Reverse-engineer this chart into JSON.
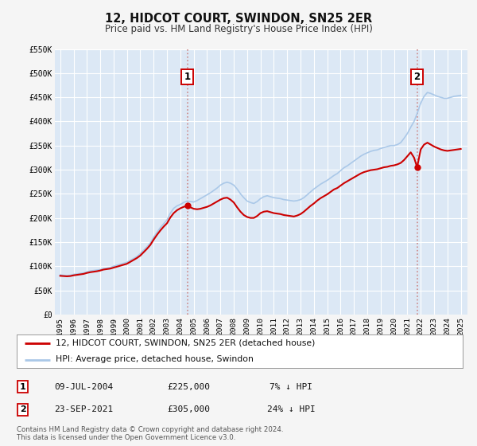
{
  "title": "12, HIDCOT COURT, SWINDON, SN25 2ER",
  "subtitle": "Price paid vs. HM Land Registry's House Price Index (HPI)",
  "bg_color": "#f5f5f5",
  "plot_bg_color": "#dce8f5",
  "grid_color": "#ffffff",
  "hpi_color": "#aac8e8",
  "price_color": "#cc0000",
  "vline1_color": "#c8b0b0",
  "vline2_color": "#cc6666",
  "ylim": [
    0,
    550000
  ],
  "yticks": [
    0,
    50000,
    100000,
    150000,
    200000,
    250000,
    300000,
    350000,
    400000,
    450000,
    500000,
    550000
  ],
  "ytick_labels": [
    "£0",
    "£50K",
    "£100K",
    "£150K",
    "£200K",
    "£250K",
    "£300K",
    "£350K",
    "£400K",
    "£450K",
    "£500K",
    "£550K"
  ],
  "xlim_start": 1994.6,
  "xlim_end": 2025.5,
  "transaction1": {
    "date_num": 2004.52,
    "price": 225000,
    "label": "1",
    "date_str": "09-JUL-2004",
    "price_str": "£225,000",
    "pct_str": "7% ↓ HPI"
  },
  "transaction2": {
    "date_num": 2021.73,
    "price": 305000,
    "label": "2",
    "date_str": "23-SEP-2021",
    "price_str": "£305,000",
    "pct_str": "24% ↓ HPI"
  },
  "legend_label1": "12, HIDCOT COURT, SWINDON, SN25 2ER (detached house)",
  "legend_label2": "HPI: Average price, detached house, Swindon",
  "footer1": "Contains HM Land Registry data © Crown copyright and database right 2024.",
  "footer2": "This data is licensed under the Open Government Licence v3.0.",
  "hpi_data": [
    [
      1995.0,
      82000
    ],
    [
      1995.25,
      81000
    ],
    [
      1995.5,
      80500
    ],
    [
      1995.75,
      81000
    ],
    [
      1996.0,
      83000
    ],
    [
      1996.25,
      84000
    ],
    [
      1996.5,
      85000
    ],
    [
      1996.75,
      86000
    ],
    [
      1997.0,
      88000
    ],
    [
      1997.25,
      90000
    ],
    [
      1997.5,
      91000
    ],
    [
      1997.75,
      92000
    ],
    [
      1998.0,
      93000
    ],
    [
      1998.25,
      95000
    ],
    [
      1998.5,
      96000
    ],
    [
      1998.75,
      97000
    ],
    [
      1999.0,
      100000
    ],
    [
      1999.25,
      102000
    ],
    [
      1999.5,
      104000
    ],
    [
      1999.75,
      106000
    ],
    [
      2000.0,
      108000
    ],
    [
      2000.25,
      112000
    ],
    [
      2000.5,
      116000
    ],
    [
      2000.75,
      120000
    ],
    [
      2001.0,
      126000
    ],
    [
      2001.25,
      133000
    ],
    [
      2001.5,
      140000
    ],
    [
      2001.75,
      148000
    ],
    [
      2002.0,
      160000
    ],
    [
      2002.25,
      170000
    ],
    [
      2002.5,
      180000
    ],
    [
      2002.75,
      188000
    ],
    [
      2003.0,
      196000
    ],
    [
      2003.25,
      210000
    ],
    [
      2003.5,
      220000
    ],
    [
      2003.75,
      225000
    ],
    [
      2004.0,
      228000
    ],
    [
      2004.25,
      232000
    ],
    [
      2004.5,
      235000
    ],
    [
      2004.75,
      234000
    ],
    [
      2005.0,
      233000
    ],
    [
      2005.25,
      236000
    ],
    [
      2005.5,
      240000
    ],
    [
      2005.75,
      244000
    ],
    [
      2006.0,
      248000
    ],
    [
      2006.25,
      252000
    ],
    [
      2006.5,
      257000
    ],
    [
      2006.75,
      262000
    ],
    [
      2007.0,
      268000
    ],
    [
      2007.25,
      272000
    ],
    [
      2007.5,
      274000
    ],
    [
      2007.75,
      272000
    ],
    [
      2008.0,
      268000
    ],
    [
      2008.25,
      260000
    ],
    [
      2008.5,
      250000
    ],
    [
      2008.75,
      242000
    ],
    [
      2009.0,
      235000
    ],
    [
      2009.25,
      232000
    ],
    [
      2009.5,
      230000
    ],
    [
      2009.75,
      234000
    ],
    [
      2010.0,
      240000
    ],
    [
      2010.25,
      244000
    ],
    [
      2010.5,
      246000
    ],
    [
      2010.75,
      244000
    ],
    [
      2011.0,
      242000
    ],
    [
      2011.25,
      241000
    ],
    [
      2011.5,
      240000
    ],
    [
      2011.75,
      238000
    ],
    [
      2012.0,
      237000
    ],
    [
      2012.25,
      236000
    ],
    [
      2012.5,
      235000
    ],
    [
      2012.75,
      236000
    ],
    [
      2013.0,
      238000
    ],
    [
      2013.25,
      242000
    ],
    [
      2013.5,
      248000
    ],
    [
      2013.75,
      254000
    ],
    [
      2014.0,
      260000
    ],
    [
      2014.25,
      265000
    ],
    [
      2014.5,
      270000
    ],
    [
      2014.75,
      274000
    ],
    [
      2015.0,
      278000
    ],
    [
      2015.25,
      283000
    ],
    [
      2015.5,
      288000
    ],
    [
      2015.75,
      292000
    ],
    [
      2016.0,
      298000
    ],
    [
      2016.25,
      304000
    ],
    [
      2016.5,
      308000
    ],
    [
      2016.75,
      313000
    ],
    [
      2017.0,
      318000
    ],
    [
      2017.25,
      323000
    ],
    [
      2017.5,
      328000
    ],
    [
      2017.75,
      332000
    ],
    [
      2018.0,
      335000
    ],
    [
      2018.25,
      338000
    ],
    [
      2018.5,
      340000
    ],
    [
      2018.75,
      341000
    ],
    [
      2019.0,
      344000
    ],
    [
      2019.25,
      346000
    ],
    [
      2019.5,
      348000
    ],
    [
      2019.75,
      350000
    ],
    [
      2020.0,
      350000
    ],
    [
      2020.25,
      352000
    ],
    [
      2020.5,
      356000
    ],
    [
      2020.75,
      365000
    ],
    [
      2021.0,
      375000
    ],
    [
      2021.25,
      388000
    ],
    [
      2021.5,
      400000
    ],
    [
      2021.75,
      418000
    ],
    [
      2022.0,
      438000
    ],
    [
      2022.25,
      452000
    ],
    [
      2022.5,
      460000
    ],
    [
      2022.75,
      458000
    ],
    [
      2023.0,
      455000
    ],
    [
      2023.25,
      452000
    ],
    [
      2023.5,
      450000
    ],
    [
      2023.75,
      448000
    ],
    [
      2024.0,
      448000
    ],
    [
      2024.25,
      450000
    ],
    [
      2024.5,
      452000
    ],
    [
      2024.75,
      453000
    ],
    [
      2025.0,
      454000
    ]
  ],
  "price_data": [
    [
      1995.0,
      80000
    ],
    [
      1995.25,
      79500
    ],
    [
      1995.5,
      79000
    ],
    [
      1995.75,
      79500
    ],
    [
      1996.0,
      81000
    ],
    [
      1996.25,
      82000
    ],
    [
      1996.5,
      83000
    ],
    [
      1996.75,
      84000
    ],
    [
      1997.0,
      86000
    ],
    [
      1997.25,
      87500
    ],
    [
      1997.5,
      88500
    ],
    [
      1997.75,
      89500
    ],
    [
      1998.0,
      91000
    ],
    [
      1998.25,
      93000
    ],
    [
      1998.5,
      94000
    ],
    [
      1998.75,
      95000
    ],
    [
      1999.0,
      97000
    ],
    [
      1999.25,
      99000
    ],
    [
      1999.5,
      101000
    ],
    [
      1999.75,
      103000
    ],
    [
      2000.0,
      105000
    ],
    [
      2000.25,
      109000
    ],
    [
      2000.5,
      113000
    ],
    [
      2000.75,
      117000
    ],
    [
      2001.0,
      122000
    ],
    [
      2001.25,
      129000
    ],
    [
      2001.5,
      136000
    ],
    [
      2001.75,
      144000
    ],
    [
      2002.0,
      155000
    ],
    [
      2002.25,
      165000
    ],
    [
      2002.5,
      174000
    ],
    [
      2002.75,
      182000
    ],
    [
      2003.0,
      189000
    ],
    [
      2003.25,
      201000
    ],
    [
      2003.5,
      210000
    ],
    [
      2003.75,
      216000
    ],
    [
      2004.0,
      220000
    ],
    [
      2004.25,
      223000
    ],
    [
      2004.52,
      225000
    ],
    [
      2004.75,
      222000
    ],
    [
      2005.0,
      219000
    ],
    [
      2005.25,
      218000
    ],
    [
      2005.5,
      219000
    ],
    [
      2005.75,
      221000
    ],
    [
      2006.0,
      223000
    ],
    [
      2006.25,
      226000
    ],
    [
      2006.5,
      230000
    ],
    [
      2006.75,
      234000
    ],
    [
      2007.0,
      238000
    ],
    [
      2007.25,
      241000
    ],
    [
      2007.5,
      242000
    ],
    [
      2007.75,
      238000
    ],
    [
      2008.0,
      232000
    ],
    [
      2008.25,
      222000
    ],
    [
      2008.5,
      213000
    ],
    [
      2008.75,
      206000
    ],
    [
      2009.0,
      202000
    ],
    [
      2009.25,
      200000
    ],
    [
      2009.5,
      200000
    ],
    [
      2009.75,
      204000
    ],
    [
      2010.0,
      210000
    ],
    [
      2010.25,
      213000
    ],
    [
      2010.5,
      214000
    ],
    [
      2010.75,
      212000
    ],
    [
      2011.0,
      210000
    ],
    [
      2011.25,
      209000
    ],
    [
      2011.5,
      208000
    ],
    [
      2011.75,
      206000
    ],
    [
      2012.0,
      205000
    ],
    [
      2012.25,
      204000
    ],
    [
      2012.5,
      203000
    ],
    [
      2012.75,
      205000
    ],
    [
      2013.0,
      208000
    ],
    [
      2013.25,
      213000
    ],
    [
      2013.5,
      219000
    ],
    [
      2013.75,
      225000
    ],
    [
      2014.0,
      230000
    ],
    [
      2014.25,
      236000
    ],
    [
      2014.5,
      241000
    ],
    [
      2014.75,
      245000
    ],
    [
      2015.0,
      249000
    ],
    [
      2015.25,
      254000
    ],
    [
      2015.5,
      259000
    ],
    [
      2015.75,
      262000
    ],
    [
      2016.0,
      267000
    ],
    [
      2016.25,
      272000
    ],
    [
      2016.5,
      276000
    ],
    [
      2016.75,
      280000
    ],
    [
      2017.0,
      284000
    ],
    [
      2017.25,
      288000
    ],
    [
      2017.5,
      292000
    ],
    [
      2017.75,
      295000
    ],
    [
      2018.0,
      297000
    ],
    [
      2018.25,
      299000
    ],
    [
      2018.5,
      300000
    ],
    [
      2018.75,
      301000
    ],
    [
      2019.0,
      303000
    ],
    [
      2019.25,
      305000
    ],
    [
      2019.5,
      306000
    ],
    [
      2019.75,
      308000
    ],
    [
      2020.0,
      309000
    ],
    [
      2020.25,
      311000
    ],
    [
      2020.5,
      314000
    ],
    [
      2020.75,
      320000
    ],
    [
      2021.0,
      328000
    ],
    [
      2021.25,
      336000
    ],
    [
      2021.5,
      325000
    ],
    [
      2021.73,
      305000
    ],
    [
      2022.0,
      342000
    ],
    [
      2022.25,
      352000
    ],
    [
      2022.5,
      356000
    ],
    [
      2022.75,
      352000
    ],
    [
      2023.0,
      348000
    ],
    [
      2023.25,
      345000
    ],
    [
      2023.5,
      342000
    ],
    [
      2023.75,
      340000
    ],
    [
      2024.0,
      339000
    ],
    [
      2024.25,
      340000
    ],
    [
      2024.5,
      341000
    ],
    [
      2024.75,
      342000
    ],
    [
      2025.0,
      343000
    ]
  ]
}
